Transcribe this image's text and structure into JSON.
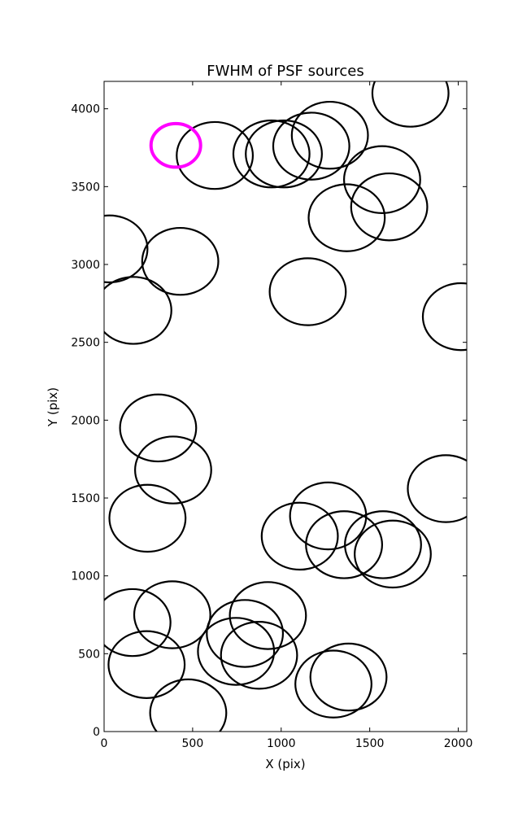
{
  "chart_data": {
    "type": "scatter",
    "title": "FWHM of PSF sources",
    "xlabel": "X (pix)",
    "ylabel": "Y (pix)",
    "xlim": [
      0,
      2048
    ],
    "ylim": [
      0,
      4176
    ],
    "xticks": [
      0,
      500,
      1000,
      1500,
      2000
    ],
    "yticks": [
      0,
      500,
      1000,
      1500,
      2000,
      2500,
      3000,
      3500,
      4000
    ],
    "marker": "open-circle",
    "grid": false,
    "colors": {
      "source": "#000000",
      "highlight": "#ff00ff"
    },
    "sources": [
      {
        "x": 1730,
        "y": 4100,
        "r": 215
      },
      {
        "x": 1275,
        "y": 3830,
        "r": 215
      },
      {
        "x": 1170,
        "y": 3760,
        "r": 215
      },
      {
        "x": 1015,
        "y": 3710,
        "r": 215
      },
      {
        "x": 945,
        "y": 3710,
        "r": 215
      },
      {
        "x": 625,
        "y": 3700,
        "r": 215
      },
      {
        "x": 1570,
        "y": 3545,
        "r": 215
      },
      {
        "x": 1610,
        "y": 3370,
        "r": 215
      },
      {
        "x": 1370,
        "y": 3300,
        "r": 215
      },
      {
        "x": 30,
        "y": 3100,
        "r": 215
      },
      {
        "x": 430,
        "y": 3020,
        "r": 215
      },
      {
        "x": 1150,
        "y": 2825,
        "r": 215
      },
      {
        "x": 165,
        "y": 2705,
        "r": 215
      },
      {
        "x": 2015,
        "y": 2665,
        "r": 215
      },
      {
        "x": 305,
        "y": 1950,
        "r": 215
      },
      {
        "x": 390,
        "y": 1680,
        "r": 215
      },
      {
        "x": 1930,
        "y": 1560,
        "r": 215
      },
      {
        "x": 245,
        "y": 1370,
        "r": 215
      },
      {
        "x": 1265,
        "y": 1385,
        "r": 215
      },
      {
        "x": 1105,
        "y": 1255,
        "r": 215
      },
      {
        "x": 1355,
        "y": 1200,
        "r": 215
      },
      {
        "x": 1575,
        "y": 1200,
        "r": 215
      },
      {
        "x": 1630,
        "y": 1140,
        "r": 215
      },
      {
        "x": 160,
        "y": 700,
        "r": 215
      },
      {
        "x": 385,
        "y": 750,
        "r": 215
      },
      {
        "x": 925,
        "y": 745,
        "r": 215
      },
      {
        "x": 795,
        "y": 630,
        "r": 215
      },
      {
        "x": 240,
        "y": 430,
        "r": 215
      },
      {
        "x": 745,
        "y": 515,
        "r": 215
      },
      {
        "x": 875,
        "y": 490,
        "r": 215
      },
      {
        "x": 1380,
        "y": 350,
        "r": 215
      },
      {
        "x": 1295,
        "y": 305,
        "r": 215
      },
      {
        "x": 475,
        "y": 120,
        "r": 215
      }
    ],
    "highlight": [
      {
        "x": 405,
        "y": 3765,
        "r": 140
      }
    ]
  }
}
